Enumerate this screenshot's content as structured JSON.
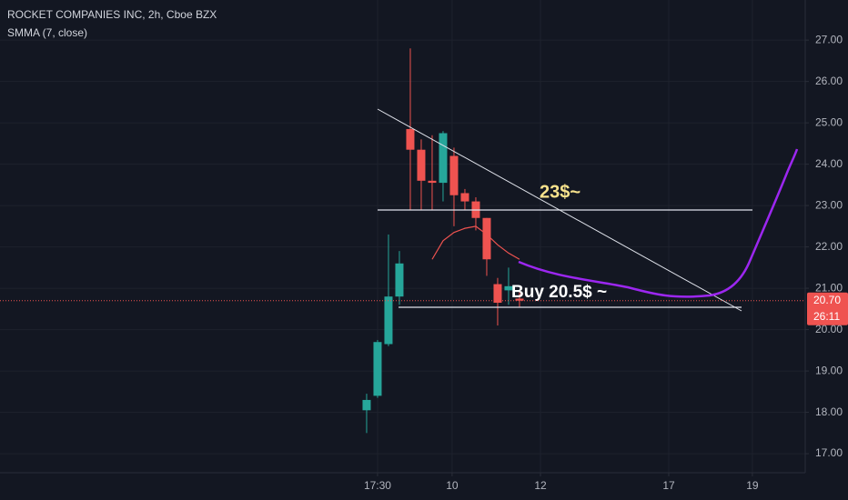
{
  "chart_data": {
    "type": "candlestick",
    "title": "ROCKET COMPANIES INC, 2h, Cboe BZX",
    "indicator": {
      "name": "SMMA (7, close)",
      "color": "#ef5350",
      "values": [
        null,
        null,
        null,
        null,
        null,
        null,
        21.7,
        22.15,
        22.35,
        22.45,
        22.5,
        22.3,
        22.05,
        21.85,
        21.7
      ]
    },
    "open": [
      18.05,
      18.4,
      19.65,
      20.8,
      24.85,
      24.35,
      23.6,
      23.55,
      24.2,
      23.3,
      23.1,
      22.7,
      21.1,
      20.95,
      20.75
    ],
    "high": [
      18.45,
      19.75,
      22.3,
      21.9,
      26.8,
      24.6,
      24.7,
      24.8,
      24.4,
      23.4,
      23.2,
      22.7,
      21.25,
      21.5,
      20.9
    ],
    "low": [
      17.5,
      18.35,
      19.6,
      20.6,
      22.9,
      22.9,
      22.9,
      23.1,
      22.5,
      22.9,
      22.4,
      21.3,
      20.1,
      20.6,
      20.55
    ],
    "close": [
      18.3,
      19.7,
      20.8,
      21.6,
      24.35,
      23.6,
      23.55,
      24.75,
      23.25,
      23.1,
      22.7,
      21.7,
      20.65,
      21.05,
      20.7
    ],
    "up_color": "#26a69a",
    "down_color": "#ef5350",
    "xlim": [
      -33.58,
      40.17
    ],
    "xticks": [
      {
        "value": 1,
        "label": "17:30"
      },
      {
        "value": 7.83,
        "label": "10"
      },
      {
        "value": 15.92,
        "label": "12"
      },
      {
        "value": 27.67,
        "label": "17"
      },
      {
        "value": 35.33,
        "label": "19"
      }
    ],
    "ylim": [
      16.54,
      27.97
    ],
    "yticks": [
      {
        "value": 17,
        "label": "17.00"
      },
      {
        "value": 18,
        "label": "18.00"
      },
      {
        "value": 19,
        "label": "19.00"
      },
      {
        "value": 20,
        "label": "20.00"
      },
      {
        "value": 21,
        "label": "21.00"
      },
      {
        "value": 22,
        "label": "22.00"
      },
      {
        "value": 23,
        "label": "23.00"
      },
      {
        "value": 24,
        "label": "24.00"
      },
      {
        "value": 25,
        "label": "25.00"
      },
      {
        "value": 26,
        "label": "26.00"
      },
      {
        "value": 27,
        "label": "27.00"
      }
    ],
    "last_price": {
      "value": 20.7,
      "label": "20.70"
    },
    "countdown": "26:11",
    "grid": true,
    "annotations": [
      "23$~",
      "Buy 20.5$ ~"
    ]
  }
}
